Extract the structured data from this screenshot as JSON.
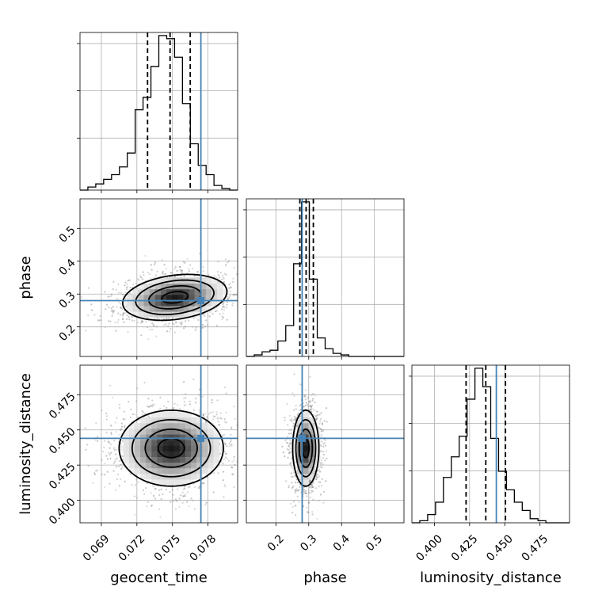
{
  "chart_data": {
    "type": "corner",
    "parameters": [
      "geocent_time",
      "phase",
      "luminosity_distance"
    ],
    "truths": {
      "geocent_time": 0.0774,
      "phase": 0.28,
      "luminosity_distance": 0.444
    },
    "colors": {
      "truth": "#4682b4",
      "hist": "#000000",
      "points": "#7f7f7f"
    },
    "grid": true,
    "ranges": {
      "geocent_time": [
        0.0672,
        0.0805
      ],
      "phase": [
        0.11,
        0.59
      ],
      "luminosity_distance": [
        0.384,
        0.496
      ]
    },
    "ticks": {
      "geocent_time": [
        {
          "v": 0.069,
          "label": "0.069"
        },
        {
          "v": 0.072,
          "label": "0.072"
        },
        {
          "v": 0.075,
          "label": "0.075"
        },
        {
          "v": 0.078,
          "label": "0.078"
        }
      ],
      "phase": [
        {
          "v": 0.2,
          "label": "0.2"
        },
        {
          "v": 0.3,
          "label": "0.3"
        },
        {
          "v": 0.4,
          "label": "0.4"
        },
        {
          "v": 0.5,
          "label": "0.5"
        }
      ],
      "luminosity_distance": [
        {
          "v": 0.4,
          "label": "0.400"
        },
        {
          "v": 0.425,
          "label": "0.425"
        },
        {
          "v": 0.45,
          "label": "0.450"
        },
        {
          "v": 0.475,
          "label": "0.475"
        }
      ]
    },
    "marginals": {
      "geocent_time": {
        "counts": [
          0,
          2,
          4,
          7,
          10,
          15,
          24,
          52,
          60,
          80,
          100,
          98,
          86,
          56,
          30,
          16,
          10,
          3,
          1,
          0
        ],
        "quantiles": [
          0.0729,
          0.0748,
          0.0765
        ]
      },
      "phase": {
        "counts": [
          0,
          1,
          3,
          4,
          10,
          20,
          60,
          100,
          50,
          12,
          5,
          2,
          1,
          0,
          0,
          0,
          0,
          0,
          0,
          0
        ],
        "quantiles": [
          0.273,
          0.292,
          0.314
        ]
      },
      "luminosity_distance": {
        "counts": [
          0,
          1,
          4,
          10,
          22,
          32,
          42,
          60,
          75,
          66,
          41,
          25,
          16,
          10,
          6,
          2,
          1,
          0,
          0,
          0
        ],
        "quantiles": [
          0.4225,
          0.4365,
          0.4505
        ]
      }
    },
    "pair_estimates": [
      {
        "x": "geocent_time",
        "y": "phase",
        "center": [
          0.0752,
          0.29
        ],
        "sd": [
          0.0022,
          0.035
        ],
        "corr": 0.25
      },
      {
        "x": "geocent_time",
        "y": "luminosity_distance",
        "center": [
          0.0749,
          0.437
        ],
        "sd": [
          0.0022,
          0.0135
        ],
        "corr": 0.0
      },
      {
        "x": "phase",
        "y": "luminosity_distance",
        "center": [
          0.291,
          0.437
        ],
        "sd": [
          0.02,
          0.0135
        ],
        "corr": 0.0
      }
    ]
  }
}
